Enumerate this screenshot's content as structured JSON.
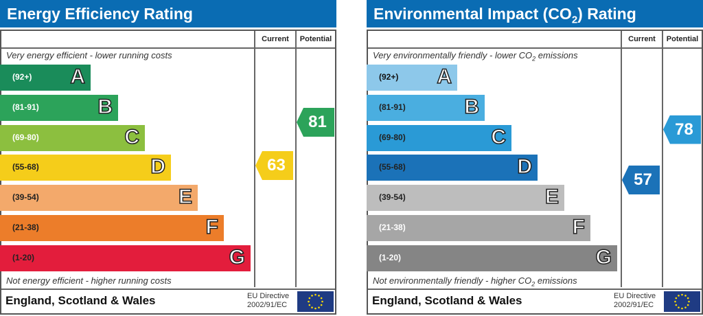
{
  "chart_data": [
    {
      "type": "bar",
      "title": "Energy Efficiency Rating",
      "column_headers": [
        "Current",
        "Potential"
      ],
      "top_caption": "Very energy efficient - lower running costs",
      "bottom_caption": "Not energy efficient - higher running costs",
      "bands": [
        {
          "letter": "A",
          "range": "(92+)",
          "color": "#1a8c5a",
          "text": "#fff"
        },
        {
          "letter": "B",
          "range": "(81-91)",
          "color": "#2ca35a",
          "text": "#fff"
        },
        {
          "letter": "C",
          "range": "(69-80)",
          "color": "#8cbf3f",
          "text": "#fff"
        },
        {
          "letter": "D",
          "range": "(55-68)",
          "color": "#f5cd1a",
          "text": "#222"
        },
        {
          "letter": "E",
          "range": "(39-54)",
          "color": "#f3a96b",
          "text": "#222"
        },
        {
          "letter": "F",
          "range": "(21-38)",
          "color": "#ec7d2a",
          "text": "#222"
        },
        {
          "letter": "G",
          "range": "(1-20)",
          "color": "#e31d3c",
          "text": "#222"
        }
      ],
      "current": {
        "value": 63,
        "label": "63",
        "color": "#f5cd1a"
      },
      "potential": {
        "value": 81,
        "label": "81",
        "color": "#2ca35a"
      },
      "footer": "England, Scotland & Wales",
      "directive": [
        "EU Directive",
        "2002/91/EC"
      ]
    },
    {
      "type": "bar",
      "title": "Environmental Impact (CO",
      "title_sub": "2",
      "title_end": ") Rating",
      "column_headers": [
        "Current",
        "Potential"
      ],
      "top_caption": "Very environmentally friendly - lower CO",
      "top_caption_end": " emissions",
      "bottom_caption": "Not environmentally friendly - higher CO",
      "bottom_caption_end": " emissions",
      "sub": "2",
      "bands": [
        {
          "letter": "A",
          "range": "(92+)",
          "color": "#8dc8ea",
          "text": "#111"
        },
        {
          "letter": "B",
          "range": "(81-91)",
          "color": "#4aaee0",
          "text": "#222"
        },
        {
          "letter": "C",
          "range": "(69-80)",
          "color": "#2a9ad6",
          "text": "#222"
        },
        {
          "letter": "D",
          "range": "(55-68)",
          "color": "#1b72b8",
          "text": "#222"
        },
        {
          "letter": "E",
          "range": "(39-54)",
          "color": "#bdbdbd",
          "text": "#222"
        },
        {
          "letter": "F",
          "range": "(21-38)",
          "color": "#a6a6a6",
          "text": "#fff"
        },
        {
          "letter": "G",
          "range": "(1-20)",
          "color": "#858585",
          "text": "#fff"
        }
      ],
      "current": {
        "value": 57,
        "label": "57",
        "color": "#1b72b8"
      },
      "potential": {
        "value": 78,
        "label": "78",
        "color": "#2a9ad6"
      },
      "footer": "England, Scotland & Wales",
      "directive": [
        "EU Directive",
        "2002/91/EC"
      ]
    }
  ]
}
